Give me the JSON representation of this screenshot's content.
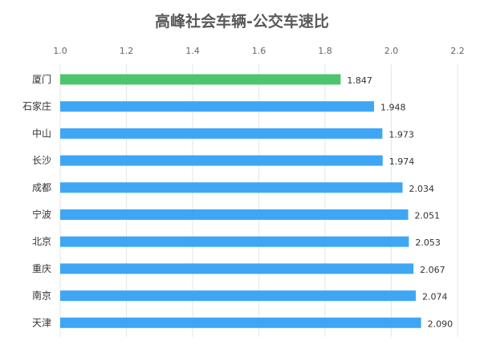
{
  "chart_data": {
    "type": "bar",
    "orientation": "horizontal",
    "title": "高峰社会车辆-公交车速比",
    "xlabel": "",
    "ylabel": "",
    "xlim": [
      1.0,
      2.2
    ],
    "ticks": [
      "1.0",
      "1.2",
      "1.4",
      "1.6",
      "1.8",
      "2.0",
      "2.2"
    ],
    "tick_values": [
      1.0,
      1.2,
      1.4,
      1.6,
      1.8,
      2.0,
      2.2
    ],
    "grid": true,
    "axis_position": "top",
    "categories": [
      "厦门",
      "石家庄",
      "中山",
      "长沙",
      "成都",
      "宁波",
      "北京",
      "重庆",
      "南京",
      "天津"
    ],
    "values": [
      1.847,
      1.948,
      1.973,
      1.974,
      2.034,
      2.051,
      2.053,
      2.067,
      2.074,
      2.09
    ],
    "value_labels": [
      "1.847",
      "1.948",
      "1.973",
      "1.974",
      "2.034",
      "2.051",
      "2.053",
      "2.067",
      "2.074",
      "2.090"
    ],
    "colors": {
      "highlight": "#4ec46e",
      "bar": "#3ea6f5",
      "grid": "#e6e6e6"
    },
    "highlight_index": 0
  }
}
